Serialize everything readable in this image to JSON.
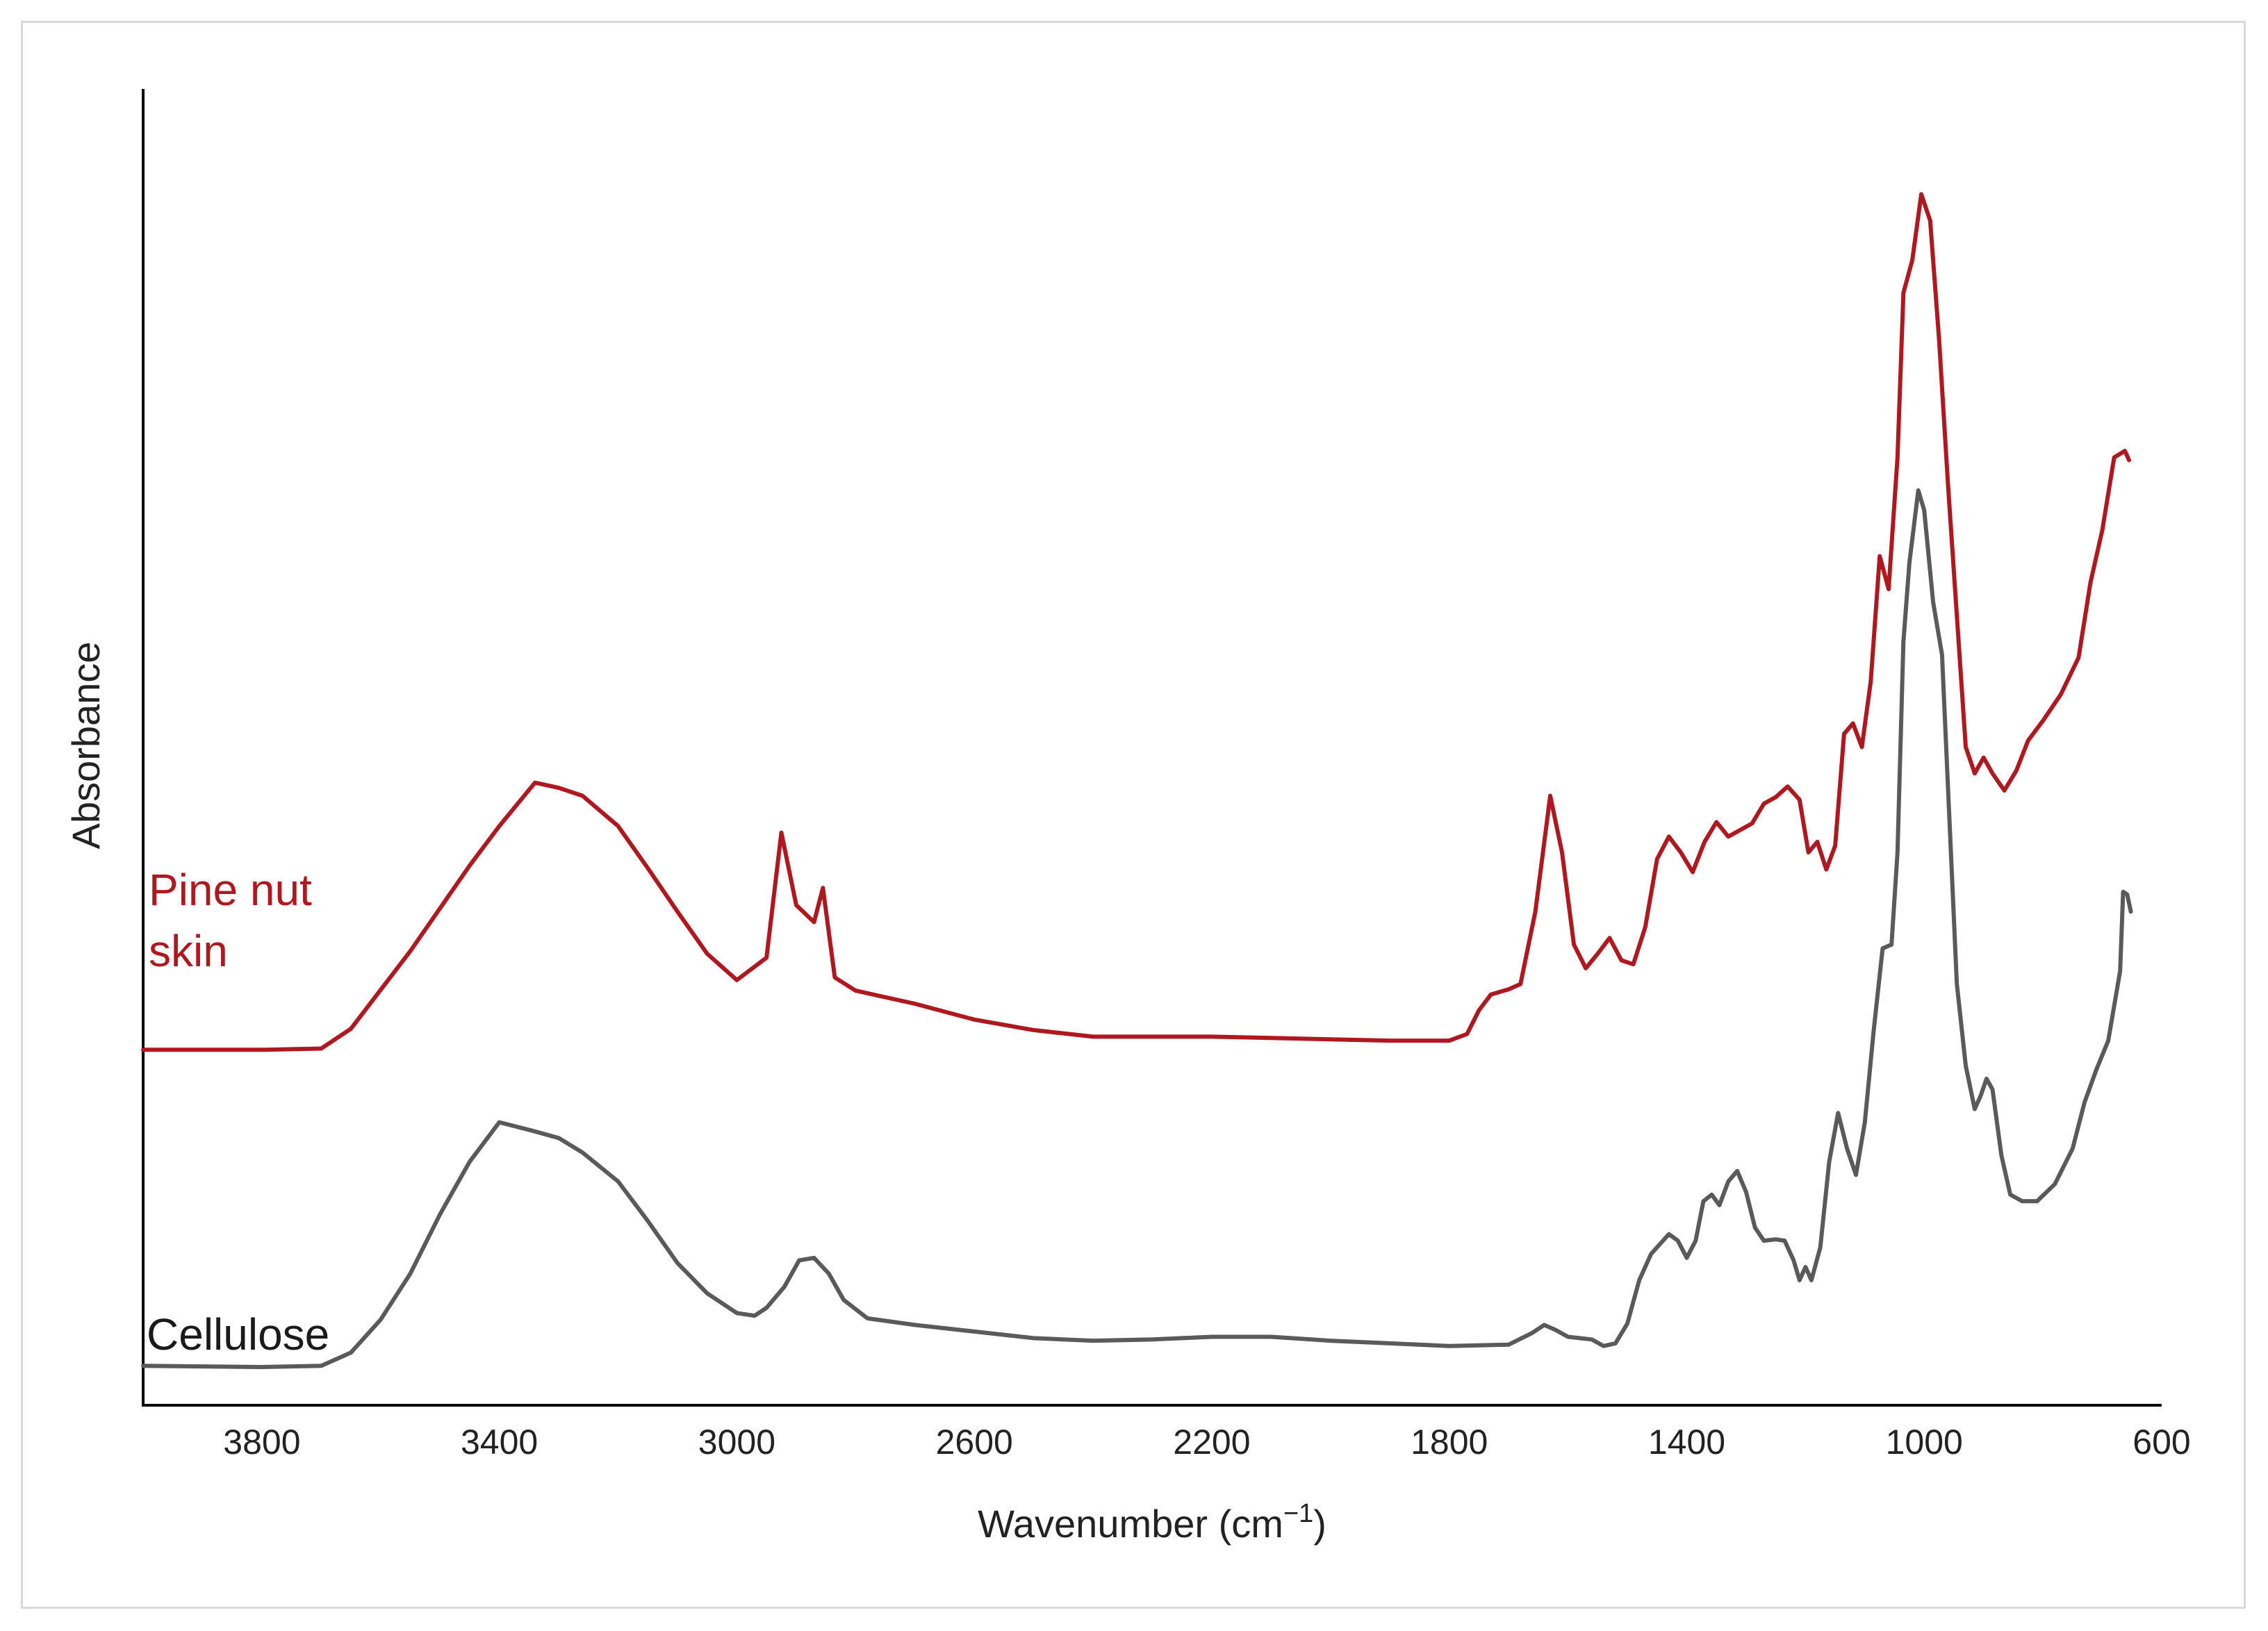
{
  "chart_data": {
    "type": "line",
    "title": "",
    "xlabel_base": "Wavenumber (cm",
    "xlabel_sup": "−1",
    "xlabel_close": ")",
    "ylabel": "Absorbance",
    "x_reversed": true,
    "xlim": [
      4000,
      600
    ],
    "ylim": [
      0,
      10
    ],
    "grid": false,
    "x_ticks": [
      3800,
      3400,
      3000,
      2600,
      2200,
      1800,
      1400,
      1000,
      600
    ],
    "x_tick_labels": [
      "3800",
      "3400",
      "3000",
      "2600",
      "2200",
      "1800",
      "1400",
      "1000",
      "600"
    ],
    "series": [
      {
        "name": "Pine nut skin",
        "label_line1": "Pine nut",
        "label_line2": "skin",
        "color": "#b01820",
        "points": [
          [
            4000,
            2.7
          ],
          [
            3800,
            2.7
          ],
          [
            3700,
            2.71
          ],
          [
            3650,
            2.86
          ],
          [
            3550,
            3.45
          ],
          [
            3450,
            4.1
          ],
          [
            3400,
            4.4
          ],
          [
            3340,
            4.73
          ],
          [
            3300,
            4.69
          ],
          [
            3260,
            4.63
          ],
          [
            3200,
            4.4
          ],
          [
            3150,
            4.08
          ],
          [
            3100,
            3.75
          ],
          [
            3050,
            3.43
          ],
          [
            3000,
            3.23
          ],
          [
            2950,
            3.4
          ],
          [
            2925,
            4.35
          ],
          [
            2900,
            3.8
          ],
          [
            2870,
            3.67
          ],
          [
            2855,
            3.93
          ],
          [
            2835,
            3.25
          ],
          [
            2800,
            3.15
          ],
          [
            2700,
            3.05
          ],
          [
            2600,
            2.93
          ],
          [
            2500,
            2.85
          ],
          [
            2400,
            2.8
          ],
          [
            2300,
            2.8
          ],
          [
            2200,
            2.8
          ],
          [
            2100,
            2.79
          ],
          [
            2000,
            2.78
          ],
          [
            1900,
            2.77
          ],
          [
            1800,
            2.77
          ],
          [
            1770,
            2.82
          ],
          [
            1750,
            3.0
          ],
          [
            1730,
            3.12
          ],
          [
            1700,
            3.16
          ],
          [
            1680,
            3.2
          ],
          [
            1655,
            3.75
          ],
          [
            1630,
            4.63
          ],
          [
            1610,
            4.2
          ],
          [
            1590,
            3.5
          ],
          [
            1570,
            3.32
          ],
          [
            1550,
            3.43
          ],
          [
            1530,
            3.55
          ],
          [
            1510,
            3.38
          ],
          [
            1490,
            3.35
          ],
          [
            1470,
            3.63
          ],
          [
            1450,
            4.15
          ],
          [
            1430,
            4.32
          ],
          [
            1410,
            4.2
          ],
          [
            1390,
            4.05
          ],
          [
            1370,
            4.28
          ],
          [
            1350,
            4.43
          ],
          [
            1330,
            4.32
          ],
          [
            1310,
            4.37
          ],
          [
            1290,
            4.42
          ],
          [
            1270,
            4.57
          ],
          [
            1250,
            4.62
          ],
          [
            1230,
            4.7
          ],
          [
            1210,
            4.6
          ],
          [
            1195,
            4.2
          ],
          [
            1180,
            4.28
          ],
          [
            1165,
            4.07
          ],
          [
            1150,
            4.25
          ],
          [
            1135,
            5.1
          ],
          [
            1120,
            5.18
          ],
          [
            1105,
            5.0
          ],
          [
            1090,
            5.5
          ],
          [
            1075,
            6.45
          ],
          [
            1060,
            6.2
          ],
          [
            1045,
            7.2
          ],
          [
            1035,
            8.45
          ],
          [
            1020,
            8.7
          ],
          [
            1005,
            9.2
          ],
          [
            990,
            9.0
          ],
          [
            975,
            8.1
          ],
          [
            960,
            7.0
          ],
          [
            945,
            6.0
          ],
          [
            930,
            5.0
          ],
          [
            915,
            4.8
          ],
          [
            900,
            4.92
          ],
          [
            885,
            4.8
          ],
          [
            865,
            4.67
          ],
          [
            845,
            4.82
          ],
          [
            825,
            5.05
          ],
          [
            800,
            5.2
          ],
          [
            770,
            5.4
          ],
          [
            740,
            5.68
          ],
          [
            720,
            6.25
          ],
          [
            700,
            6.65
          ],
          [
            680,
            7.2
          ],
          [
            662,
            7.25
          ],
          [
            655,
            7.18
          ]
        ]
      },
      {
        "name": "Cellulose",
        "label_line1": "Cellulose",
        "label_line2": "",
        "color": "#5a5a5a",
        "points": [
          [
            4000,
            0.3
          ],
          [
            3800,
            0.29
          ],
          [
            3700,
            0.3
          ],
          [
            3650,
            0.4
          ],
          [
            3600,
            0.65
          ],
          [
            3550,
            1.0
          ],
          [
            3500,
            1.45
          ],
          [
            3450,
            1.85
          ],
          [
            3400,
            2.15
          ],
          [
            3340,
            2.08
          ],
          [
            3300,
            2.03
          ],
          [
            3260,
            1.92
          ],
          [
            3200,
            1.7
          ],
          [
            3150,
            1.4
          ],
          [
            3100,
            1.08
          ],
          [
            3050,
            0.85
          ],
          [
            3000,
            0.7
          ],
          [
            2970,
            0.68
          ],
          [
            2950,
            0.74
          ],
          [
            2920,
            0.9
          ],
          [
            2895,
            1.1
          ],
          [
            2870,
            1.12
          ],
          [
            2845,
            1.0
          ],
          [
            2820,
            0.8
          ],
          [
            2780,
            0.66
          ],
          [
            2700,
            0.61
          ],
          [
            2600,
            0.56
          ],
          [
            2500,
            0.51
          ],
          [
            2400,
            0.49
          ],
          [
            2300,
            0.5
          ],
          [
            2200,
            0.52
          ],
          [
            2100,
            0.52
          ],
          [
            2000,
            0.49
          ],
          [
            1900,
            0.47
          ],
          [
            1800,
            0.45
          ],
          [
            1700,
            0.46
          ],
          [
            1660,
            0.55
          ],
          [
            1640,
            0.61
          ],
          [
            1620,
            0.57
          ],
          [
            1600,
            0.52
          ],
          [
            1560,
            0.5
          ],
          [
            1540,
            0.45
          ],
          [
            1520,
            0.47
          ],
          [
            1500,
            0.62
          ],
          [
            1480,
            0.95
          ],
          [
            1460,
            1.15
          ],
          [
            1440,
            1.25
          ],
          [
            1430,
            1.3
          ],
          [
            1415,
            1.25
          ],
          [
            1400,
            1.12
          ],
          [
            1385,
            1.25
          ],
          [
            1372,
            1.55
          ],
          [
            1358,
            1.6
          ],
          [
            1345,
            1.52
          ],
          [
            1330,
            1.7
          ],
          [
            1315,
            1.78
          ],
          [
            1300,
            1.62
          ],
          [
            1285,
            1.35
          ],
          [
            1270,
            1.25
          ],
          [
            1250,
            1.26
          ],
          [
            1235,
            1.25
          ],
          [
            1220,
            1.1
          ],
          [
            1210,
            0.95
          ],
          [
            1200,
            1.05
          ],
          [
            1190,
            0.95
          ],
          [
            1175,
            1.2
          ],
          [
            1160,
            1.85
          ],
          [
            1145,
            2.22
          ],
          [
            1130,
            1.95
          ],
          [
            1115,
            1.75
          ],
          [
            1100,
            2.15
          ],
          [
            1085,
            2.85
          ],
          [
            1070,
            3.47
          ],
          [
            1055,
            3.5
          ],
          [
            1045,
            4.2
          ],
          [
            1035,
            5.8
          ],
          [
            1025,
            6.4
          ],
          [
            1010,
            6.95
          ],
          [
            1000,
            6.8
          ],
          [
            985,
            6.1
          ],
          [
            970,
            5.7
          ],
          [
            960,
            4.7
          ],
          [
            945,
            3.2
          ],
          [
            930,
            2.58
          ],
          [
            915,
            2.25
          ],
          [
            905,
            2.35
          ],
          [
            895,
            2.48
          ],
          [
            885,
            2.4
          ],
          [
            870,
            1.9
          ],
          [
            855,
            1.6
          ],
          [
            835,
            1.55
          ],
          [
            810,
            1.55
          ],
          [
            780,
            1.68
          ],
          [
            750,
            1.95
          ],
          [
            730,
            2.3
          ],
          [
            710,
            2.55
          ],
          [
            690,
            2.77
          ],
          [
            670,
            3.3
          ],
          [
            665,
            3.9
          ],
          [
            658,
            3.88
          ],
          [
            652,
            3.75
          ]
        ]
      }
    ]
  }
}
